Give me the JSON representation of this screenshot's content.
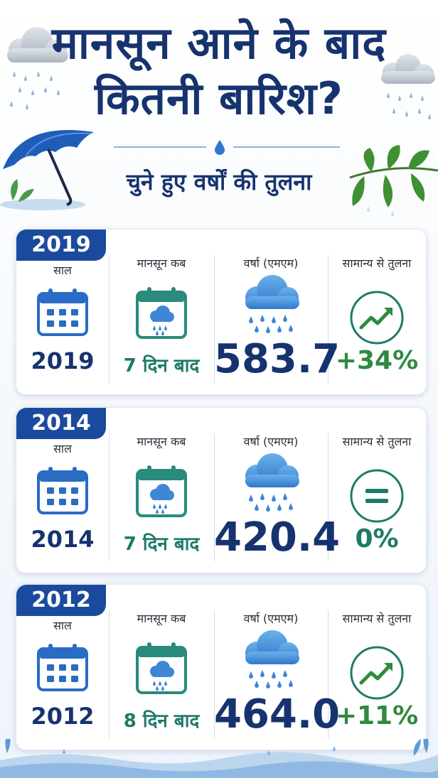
{
  "header": {
    "title_line1": "मानसून आने के बाद",
    "title_line2": "कितनी बारिश?",
    "subtitle": "चुने हुए वर्षों की तुलना"
  },
  "labels": {
    "year": "साल",
    "onset": "मानसून कब",
    "rainfall": "वर्षा (एमएम)",
    "comparison": "सामान्य से तुलना"
  },
  "colors": {
    "navy": "#16336f",
    "tab_blue": "#1a4a9e",
    "teal": "#1f7a6a",
    "green": "#2f8a3f"
  },
  "records": [
    {
      "badge": "2019",
      "year": "2019",
      "onset": "7 दिन बाद",
      "rainfall": "583.7",
      "comparison": "+34%",
      "trend_icon": "trending-up-icon"
    },
    {
      "badge": "2014",
      "year": "2014",
      "onset": "7 दिन बाद",
      "rainfall": "420.4",
      "comparison": "0%",
      "trend_icon": "equals-icon"
    },
    {
      "badge": "2012",
      "year": "2012",
      "onset": "8 दिन बाद",
      "rainfall": "464.0",
      "comparison": "+11%",
      "trend_icon": "trending-up-icon"
    }
  ]
}
